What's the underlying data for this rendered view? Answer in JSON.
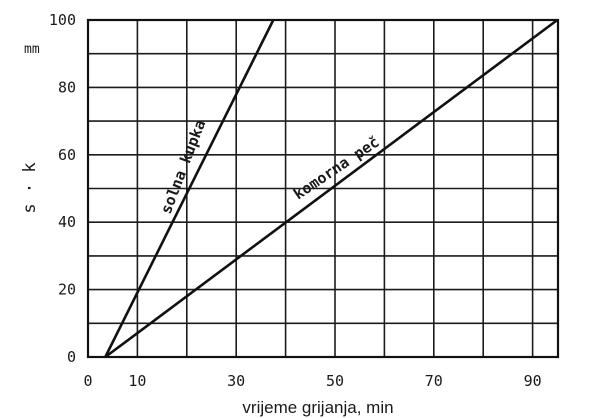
{
  "chart_data": {
    "type": "line",
    "xlabel": "vrijeme grijanja, min",
    "ylabel": "s · k",
    "yunit": "mm",
    "xlim": [
      0,
      100
    ],
    "ylim": [
      0,
      100
    ],
    "grid": true,
    "x_gridlines": [
      0,
      10,
      20,
      30,
      40,
      50,
      60,
      70,
      80,
      90,
      100
    ],
    "y_gridlines": [
      0,
      10,
      20,
      30,
      40,
      50,
      60,
      70,
      80,
      90,
      100
    ],
    "x_ticks": [
      0,
      10,
      30,
      50,
      70,
      90
    ],
    "y_ticks": [
      0,
      20,
      40,
      60,
      80,
      100
    ],
    "series": [
      {
        "name": "solna kupka",
        "x": [
          3.5,
          37.5
        ],
        "y": [
          0,
          100
        ]
      },
      {
        "name": "komorna peč",
        "x": [
          3.5,
          95
        ],
        "y": [
          0,
          100
        ]
      }
    ]
  }
}
